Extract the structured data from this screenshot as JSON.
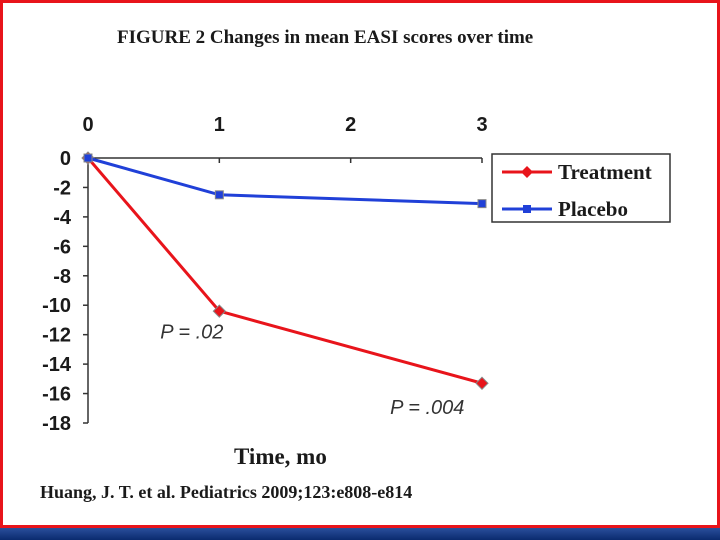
{
  "chart_data": {
    "type": "line",
    "title": "FIGURE 2 Changes in mean EASI scores over time",
    "xlabel": "Time, mo",
    "ylabel": "",
    "x": [
      0,
      1,
      2,
      3
    ],
    "x_ticks": [
      "0",
      "1",
      "2",
      "3"
    ],
    "xlim": [
      0,
      3
    ],
    "ylim": [
      -18,
      0
    ],
    "y_ticks": [
      "0",
      "-2",
      "-4",
      "-6",
      "-8",
      "-10",
      "-12",
      "-14",
      "-16",
      "-18"
    ],
    "series": [
      {
        "name": "Treatment",
        "color": "#e8141b",
        "marker": "diamond",
        "x": [
          0,
          1,
          3
        ],
        "values": [
          0,
          -10.4,
          -15.3
        ]
      },
      {
        "name": "Placebo",
        "color": "#2040d8",
        "marker": "square",
        "x": [
          0,
          1,
          3
        ],
        "values": [
          0,
          -2.5,
          -3.1
        ]
      }
    ],
    "annotations": [
      {
        "text": "P = .02",
        "x": 0.55,
        "y": -11.8
      },
      {
        "text": "P = .004",
        "x": 2.3,
        "y": -16.9
      }
    ],
    "legend_position": "top-right",
    "grid": false
  },
  "citation": "Huang, J. T. et al. Pediatrics 2009;123:e808-e814",
  "colors": {
    "frame": "#e8141b",
    "bottom_bar": "#0a2a6e"
  }
}
